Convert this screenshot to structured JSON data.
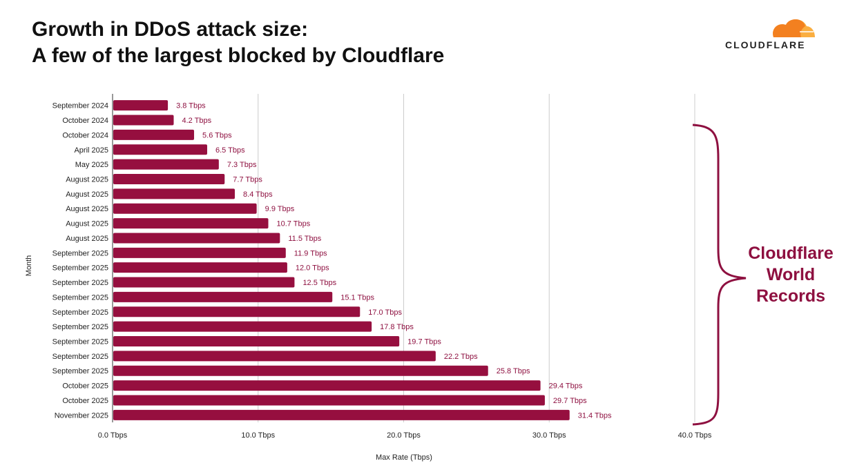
{
  "title_line1": "Growth in DDoS attack size:",
  "title_line2": "A few of the largest blocked by Cloudflare",
  "logo": {
    "text": "CLOUDFLARE",
    "colors": [
      "#f38020",
      "#faae40"
    ]
  },
  "annotation": {
    "lines": [
      "Cloudflare",
      "World",
      "Records"
    ],
    "color": "#8e1040"
  },
  "chart_data": {
    "type": "bar",
    "orientation": "horizontal",
    "xlabel": "Max Rate (Tbps)",
    "ylabel": "Month",
    "xlim": [
      0,
      40
    ],
    "xticks": [
      0,
      10,
      20,
      30,
      40
    ],
    "xtick_labels": [
      "0.0 Tbps",
      "10.0 Tbps",
      "20.0 Tbps",
      "30.0 Tbps",
      "40.0 Tbps"
    ],
    "grid": true,
    "bar_color": "#960f3f",
    "categories": [
      "September 2024",
      "October 2024",
      "October 2024",
      "April 2025",
      "May 2025",
      "August 2025",
      "August 2025",
      "August 2025",
      "August 2025",
      "August 2025",
      "September 2025",
      "September 2025",
      "September 2025",
      "September 2025",
      "September 2025",
      "September 2025",
      "September 2025",
      "September 2025",
      "September 2025",
      "October 2025",
      "October 2025",
      "November 2025"
    ],
    "values": [
      3.8,
      4.2,
      5.6,
      6.5,
      7.3,
      7.7,
      8.4,
      9.9,
      10.7,
      11.5,
      11.9,
      12.0,
      12.5,
      15.1,
      17.0,
      17.8,
      19.7,
      22.2,
      25.8,
      29.4,
      29.7,
      31.4
    ],
    "data_labels": [
      "3.8 Tbps",
      "4.2 Tbps",
      "5.6 Tbps",
      "6.5 Tbps",
      "7.3 Tbps",
      "7.7 Tbps",
      "8.4 Tbps",
      "9.9 Tbps",
      "10.7 Tbps",
      "11.5 Tbps",
      "11.9 Tbps",
      "12.0 Tbps",
      "12.5 Tbps",
      "15.1 Tbps",
      "17.0 Tbps",
      "17.8 Tbps",
      "19.7 Tbps",
      "22.2 Tbps",
      "25.8 Tbps",
      "29.4 Tbps",
      "29.7 Tbps",
      "31.4 Tbps"
    ]
  }
}
